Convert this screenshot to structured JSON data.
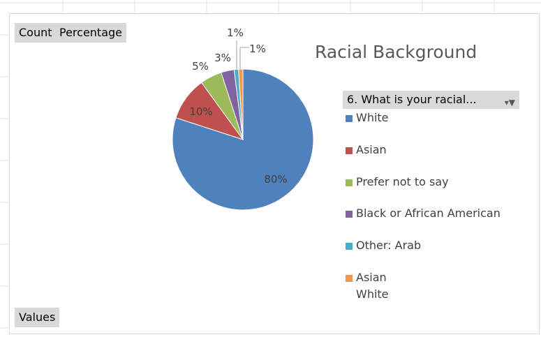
{
  "field_buttons": {
    "count": "Count",
    "percentage": "Percentage",
    "values": "Values"
  },
  "legend_header": "6. What is your racial...",
  "chart_data": {
    "type": "pie",
    "title": "Racial Background",
    "categories": [
      "White",
      "Asian",
      "Prefer not to say",
      "Black or African American",
      "Other: Arab",
      "Asian White"
    ],
    "values": [
      80,
      10,
      5,
      3,
      1,
      1
    ],
    "labels": [
      "80%",
      "10%",
      "5%",
      "3%",
      "1%",
      "1%"
    ],
    "colors": [
      "#4f81bd",
      "#c0504d",
      "#9bbb59",
      "#8064a2",
      "#4bacc6",
      "#f79646"
    ],
    "legend_position": "right"
  },
  "legend_items": [
    {
      "line1": "White",
      "line2": ""
    },
    {
      "line1": "Asian",
      "line2": ""
    },
    {
      "line1": "Prefer not to say",
      "line2": ""
    },
    {
      "line1": "Black or African American",
      "line2": ""
    },
    {
      "line1": "Other: Arab",
      "line2": ""
    },
    {
      "line1": "Asian",
      "line2": "White"
    }
  ]
}
